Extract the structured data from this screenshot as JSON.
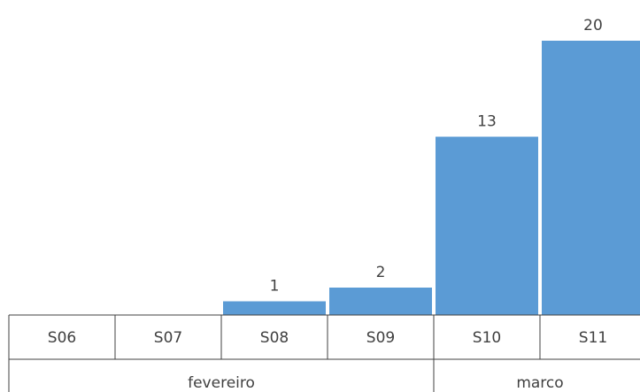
{
  "chart_data": {
    "type": "bar",
    "categories": [
      "S06",
      "S07",
      "S08",
      "S09",
      "S10",
      "S11"
    ],
    "groups": [
      {
        "label": "fevereiro",
        "span": 4
      },
      {
        "label": "marco",
        "span": 2
      }
    ],
    "values": [
      0,
      0,
      1,
      2,
      13,
      20
    ],
    "data_labels": [
      "",
      "",
      "1",
      "2",
      "13",
      "20"
    ],
    "ylim": [
      0,
      20
    ],
    "grid": false,
    "colors": {
      "bar": "#5b9bd5",
      "axis": "#404040",
      "text": "#404040"
    }
  }
}
